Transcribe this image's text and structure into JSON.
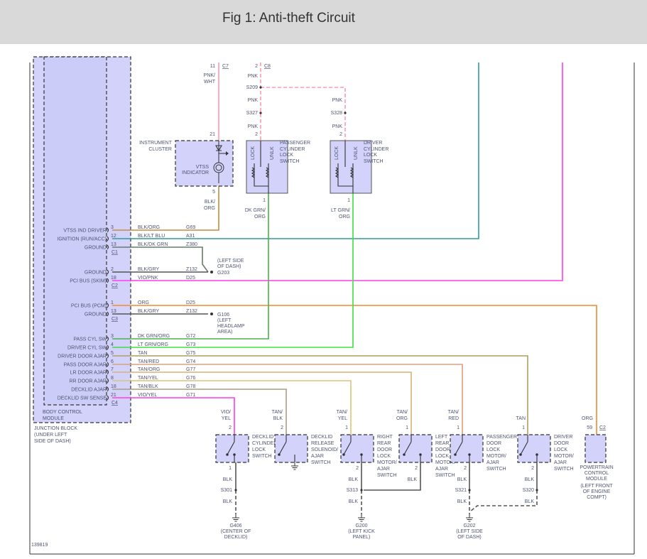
{
  "title": "Fig 1: Anti-theft Circuit",
  "figure_number": "139819",
  "colors": {
    "pink": "#ff9aae",
    "teal": "#2e9c9c",
    "magenta": "#ff3cf0",
    "orange": "#f28a2e",
    "brown_orange": "#c68a46",
    "dk_green": "#4cb04c",
    "lt_green": "#3ee03e",
    "tan": "#b39c62",
    "tan_red": "#d6a27e",
    "tan_org": "#d4b47a",
    "tan_yel": "#d8c478",
    "tan_blk": "#a89c84",
    "ground_grey": "#6a7a6a",
    "blk": "#555555",
    "block_fill": "#d2d2fa"
  },
  "junction_block": {
    "bcm_label": [
      "BODY CONTROL",
      "MODULE"
    ],
    "label": [
      "JUNCTION BLOCK",
      "(UNDER LEFT",
      "SIDE OF DASH)"
    ],
    "connectors": [
      "C1",
      "C2",
      "C3",
      "C4"
    ],
    "pins": [
      {
        "label": "VTSS IND DRIVER",
        "pin": "3",
        "wire": "BLK/ORG",
        "circuit": "G69"
      },
      {
        "label": "IGNITION (RUN/ACC)",
        "pin": "12",
        "wire": "BLK/LT BLU",
        "circuit": "A31"
      },
      {
        "label": "GROUND",
        "pin": "13",
        "wire": "BLK/DK GRN",
        "circuit": "Z380"
      },
      {
        "label": "GROUND",
        "pin": "2",
        "wire": "BLK/GRY",
        "circuit": "Z132"
      },
      {
        "label": "PCI BUS (SKIM)",
        "pin": "18",
        "wire": "VIO/PNK",
        "circuit": "D25"
      },
      {
        "label": "PCI BUS (PCM)",
        "pin": "1",
        "wire": "ORG",
        "circuit": "D25"
      },
      {
        "label": "GROUND",
        "pin": "13",
        "wire": "BLK/GRY",
        "circuit": "Z132"
      },
      {
        "label": "PASS CYL SW",
        "pin": "3",
        "wire": "DK GRN/ORG",
        "circuit": "G72"
      },
      {
        "label": "DRIVER CYL SW",
        "pin": "4",
        "wire": "LT GRN/ORG",
        "circuit": "G73"
      },
      {
        "label": "DRIVER DOOR AJAR",
        "pin": "5",
        "wire": "TAN",
        "circuit": "G75"
      },
      {
        "label": "PASS DOOR AJAR",
        "pin": "6",
        "wire": "TAN/RED",
        "circuit": "G74"
      },
      {
        "label": "LR DOOR AJAR",
        "pin": "7",
        "wire": "TAN/ORG",
        "circuit": "G77"
      },
      {
        "label": "RR DOOR AJAR",
        "pin": "8",
        "wire": "TAN/YEL",
        "circuit": "G76"
      },
      {
        "label": "DECKLID AJAR",
        "pin": "18",
        "wire": "TAN/BLK",
        "circuit": "G78"
      },
      {
        "label": "DECKLID SW SENSE",
        "pin": "21",
        "wire": "VIO/YEL",
        "circuit": "G71"
      }
    ]
  },
  "grounds_left": {
    "g203": {
      "id": "G203",
      "location": [
        "(LEFT SIDE",
        "OF DASH)"
      ]
    },
    "g106": {
      "id": "G106",
      "location": [
        "(LEFT",
        "HEADLAMP",
        "AREA)"
      ]
    }
  },
  "instrument_cluster": {
    "name": [
      "INSTRUMENT",
      "CLUSTER"
    ],
    "indicator": [
      "VTSS",
      "INDICATOR"
    ],
    "top_pin": "11",
    "top_connector": "C7",
    "top_wire": [
      "PNK/",
      "WHT"
    ],
    "pin_in": "21",
    "pin_out": "5",
    "out_wire": [
      "BLK/",
      "ORG"
    ]
  },
  "c8_feed": {
    "pin": "2",
    "connector": "C8",
    "wire": "PNK",
    "splices": [
      "S209",
      "S327",
      "S328"
    ]
  },
  "passenger_cyl_switch": {
    "name": [
      "PASSENGER",
      "CYLINDER",
      "LOCK",
      "SWITCH"
    ],
    "lock": "LOCK",
    "unlock": "UNLK",
    "pin_in": "2",
    "pin_out": "1",
    "out_wire": [
      "DK GRN/",
      "ORG"
    ]
  },
  "driver_cyl_switch": {
    "name": [
      "DRIVER",
      "CYLINDER",
      "LOCK",
      "SWITCH"
    ],
    "lock": "LOCK",
    "unlock": "UNLK",
    "pin_in": "2",
    "pin_out": "1",
    "out_wire": [
      "LT GRN/",
      "ORG"
    ]
  },
  "decklid_cyl_switch": {
    "name": [
      "DECKLID",
      "CYLINDER",
      "LOCK",
      "SWITCH"
    ],
    "in_wire": [
      "VIO/",
      "YEL"
    ],
    "pin_in": "2",
    "pin_out": "1",
    "ground_wire": "BLK",
    "splice": "S301",
    "ground": "G406",
    "ground_location": [
      "(CENTER OF",
      "DECKLID)"
    ]
  },
  "decklid_release": {
    "name": [
      "DECKLID",
      "RELEASE",
      "SOLENOID/",
      "AJAR",
      "SWITCH"
    ],
    "in_wire": [
      "TAN/",
      "BLK"
    ],
    "pin_in": "2"
  },
  "right_rear_door": {
    "name": [
      "RIGHT",
      "REAR",
      "DOOR",
      "LOCK",
      "MOTOR/",
      "AJAR",
      "SWITCH"
    ],
    "in_wire": [
      "TAN/",
      "YEL"
    ],
    "pin_in": "1",
    "pin_out": "2",
    "ground_wire": "BLK",
    "splice": "S313",
    "ground": "G200",
    "ground_location": [
      "(LEFT KICK",
      "PANEL)"
    ]
  },
  "left_rear_door": {
    "name": [
      "LEFT",
      "REAR",
      "DOOR",
      "LOCK",
      "MOTOR/",
      "AJAR",
      "SWITCH"
    ],
    "in_wire": [
      "TAN/",
      "ORG"
    ],
    "pin_in": "1",
    "pin_out": "2",
    "ground_wire": "BLK"
  },
  "passenger_door": {
    "name": [
      "PASSENGER",
      "DOOR",
      "LOCK",
      "MOTOR/",
      "AJAR",
      "SWITCH"
    ],
    "in_wire": [
      "TAN/",
      "RED"
    ],
    "pin_in": "1",
    "pin_out": "2",
    "ground_wire": "BLK",
    "splice": "S321",
    "ground": "G202",
    "ground_location": [
      "(LEFT SIDE",
      "OF DASH)"
    ]
  },
  "driver_door": {
    "name": [
      "DRIVER",
      "DOOR",
      "LOCK",
      "MOTOR/",
      "AJAR",
      "SWITCH"
    ],
    "in_wire": "TAN",
    "pin_in": "1",
    "pin_out": "2",
    "ground_wire": "BLK",
    "splice": "S320"
  },
  "pcm": {
    "name": [
      "POWERTRAIN",
      "CONTROL",
      "MODULE"
    ],
    "location": [
      "(LEFT FRONT",
      "OF ENGINE",
      "COMPT)"
    ],
    "in_wire": "ORG",
    "pin": "59",
    "connector": "C2"
  }
}
